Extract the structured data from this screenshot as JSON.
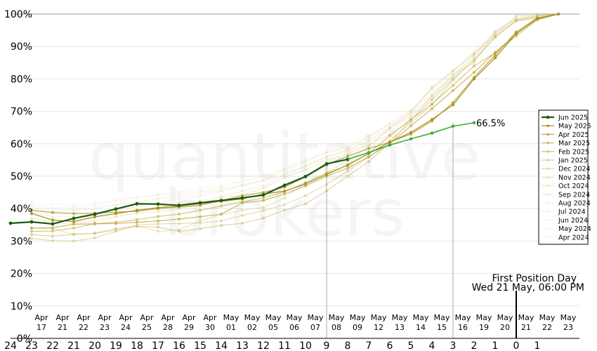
{
  "chart_data": {
    "type": "line",
    "title": "",
    "xlabel": "",
    "ylabel": "",
    "watermark": [
      "quantitative",
      "brokers"
    ],
    "ylim": [
      0,
      100
    ],
    "yticks": [
      "0%",
      "10%",
      "20%",
      "30%",
      "40%",
      "50%",
      "60%",
      "70%",
      "80%",
      "90%",
      "100%"
    ],
    "x_countdown": [
      24,
      23,
      22,
      21,
      20,
      19,
      18,
      17,
      16,
      15,
      14,
      13,
      12,
      11,
      10,
      9,
      8,
      7,
      6,
      5,
      4,
      3,
      2,
      1,
      0,
      1
    ],
    "x_dates": [
      [
        "Apr",
        "17"
      ],
      [
        "Apr",
        "21"
      ],
      [
        "Apr",
        "22"
      ],
      [
        "Apr",
        "23"
      ],
      [
        "Apr",
        "24"
      ],
      [
        "Apr",
        "25"
      ],
      [
        "Apr",
        "28"
      ],
      [
        "Apr",
        "29"
      ],
      [
        "Apr",
        "30"
      ],
      [
        "May",
        "01"
      ],
      [
        "May",
        "02"
      ],
      [
        "May",
        "05"
      ],
      [
        "May",
        "06"
      ],
      [
        "May",
        "07"
      ],
      [
        "May",
        "08"
      ],
      [
        "May",
        "09"
      ],
      [
        "May",
        "12"
      ],
      [
        "May",
        "13"
      ],
      [
        "May",
        "14"
      ],
      [
        "May",
        "15"
      ],
      [
        "May",
        "16"
      ],
      [
        "May",
        "19"
      ],
      [
        "May",
        "20"
      ],
      [
        "May",
        "21"
      ],
      [
        "May",
        "22"
      ],
      [
        "May",
        "23"
      ]
    ],
    "grid": true,
    "legend_position": "right",
    "annotation": {
      "line1": "First Position Day",
      "line2": "Wed 21 May, 06:00 PM",
      "at_countdown": 0
    },
    "current_label": "66.5%",
    "current_vline_countdown": 3,
    "past_vline_countdown": 9,
    "series": [
      {
        "name": "Jun 2025",
        "color": "#1c5a14",
        "width": 2.2,
        "opacity": 1.0,
        "start_index": 0,
        "values": [
          35.5,
          35.9,
          35.3,
          37.0,
          38.3,
          39.9,
          41.5,
          41.4,
          41.0,
          41.8,
          42.5,
          43.3,
          44.2,
          47.2,
          49.9,
          53.8,
          55.2
        ],
        "continuation": [
          55.2,
          57.3,
          59.6,
          61.5,
          63.3,
          65.4,
          66.5
        ]
      },
      {
        "name": "May 2025",
        "color": "#a88f1a",
        "width": 1.3,
        "opacity": 0.95,
        "start_index": 1,
        "values": [
          38.5,
          36.5,
          36.0,
          37.5,
          38.5,
          39.5,
          40.3,
          40.8,
          41.5,
          42.3,
          43.0,
          44.5,
          45.4,
          47.6,
          50.5,
          53.5,
          57.0,
          60.5,
          63.5,
          67.5,
          72.0,
          80.0,
          86.5,
          94.0,
          98.5,
          100
        ]
      },
      {
        "name": "Apr 2025",
        "color": "#b49a28",
        "width": 1.2,
        "opacity": 0.85,
        "start_index": 1,
        "values": [
          39.5,
          38.8,
          38.5,
          38.6,
          38.9,
          39.2,
          40.0,
          40.5,
          41.0,
          42.5,
          44.0,
          45.0,
          46.6,
          49.8,
          53.5,
          56.2,
          58.5,
          60.5,
          63.0,
          67.0,
          72.7,
          80.5,
          87.4,
          94.5,
          98.8,
          100
        ]
      },
      {
        "name": "Mar 2025",
        "color": "#bba336",
        "width": 1.2,
        "opacity": 0.75,
        "start_index": 1,
        "values": [
          34.0,
          34.1,
          35.2,
          35.3,
          35.4,
          35.8,
          36.2,
          36.8,
          37.5,
          38.3,
          41.8,
          42.5,
          44.5,
          47.0,
          50.0,
          52.5,
          56.0,
          60.0,
          65.5,
          70.8,
          76.4,
          82.0,
          88.2,
          93.8,
          98.6,
          100
        ]
      },
      {
        "name": "Feb 2025",
        "color": "#c2ac48",
        "width": 1.2,
        "opacity": 0.7,
        "start_index": 1,
        "values": [
          33.0,
          33.1,
          34.0,
          35.4,
          35.8,
          36.6,
          37.6,
          38.3,
          39.5,
          40.8,
          42.1,
          43.3,
          45.2,
          48.0,
          51.0,
          53.3,
          57.0,
          62.5,
          67.5,
          72.3,
          78.0,
          84.0,
          88.0,
          93.2,
          98.2,
          100
        ]
      },
      {
        "name": "Jan 2025",
        "color": "#c9b45a",
        "width": 1.1,
        "opacity": 0.6,
        "start_index": 1,
        "values": [
          32.0,
          31.5,
          32.1,
          32.4,
          33.8,
          34.5,
          34.3,
          33.0,
          33.8,
          34.8,
          35.5,
          37.1,
          39.5,
          41.5,
          45.5,
          50.0,
          54.5,
          60.2,
          67.4,
          73.6,
          80.1,
          86.1,
          92.8,
          97.9,
          98.8,
          100
        ]
      },
      {
        "name": "Dec 2024",
        "color": "#cfbd6c",
        "width": 1.1,
        "opacity": 0.55,
        "start_index": 1,
        "values": [
          30.8,
          30.1,
          30.0,
          31.0,
          33.0,
          35.0,
          35.3,
          35.4,
          35.6,
          36.2,
          37.9,
          39.4,
          41.2,
          44.0,
          47.5,
          51.6,
          55.8,
          61.0,
          66.5,
          72.0,
          79.6,
          85.5,
          93.0,
          98.0,
          99.5,
          100
        ]
      },
      {
        "name": "Nov 2024",
        "color": "#d5c47e",
        "width": 1.1,
        "opacity": 0.5,
        "start_index": 1,
        "values": [
          34.0,
          33.8,
          32.1,
          32.4,
          33.3,
          34.6,
          33.0,
          33.4,
          36.3,
          38.2,
          39.5,
          40.4,
          43.2,
          48.0,
          51.0,
          54.7,
          59.2,
          64.9,
          69.6,
          77.4,
          82.6,
          87.7,
          93.6,
          99.4,
          99.6,
          100
        ]
      },
      {
        "name": "Oct 2024",
        "color": "#dbcb90",
        "width": 1.0,
        "opacity": 0.45,
        "start_index": 1,
        "values": [
          36.0,
          35.4,
          35.5,
          36.1,
          37.5,
          38.6,
          39.1,
          40.0,
          41.6,
          43.3,
          44.3,
          46.4,
          49.6,
          52.0,
          55.0,
          56.9,
          59.7,
          62.8,
          67.2,
          74.9,
          81.4,
          85.0,
          94.4,
          98.6,
          99.4,
          100
        ]
      },
      {
        "name": "Sep 2024",
        "color": "#e0d2a0",
        "width": 1.0,
        "opacity": 0.42,
        "start_index": 1,
        "values": [
          37.0,
          36.2,
          36.3,
          37.1,
          38.2,
          39.4,
          40.2,
          41.9,
          42.4,
          43.8,
          45.4,
          47.1,
          50.4,
          53.0,
          56.0,
          58.0,
          61.0,
          64.8,
          68.6,
          74.3,
          81.1,
          87.0,
          94.8,
          98.5,
          99.2,
          100
        ]
      },
      {
        "name": "Aug 2024",
        "color": "#e5d8b0",
        "width": 1.0,
        "opacity": 0.4,
        "start_index": 1,
        "values": [
          39.0,
          37.4,
          37.7,
          38.6,
          39.7,
          40.6,
          41.8,
          43.0,
          43.9,
          45.4,
          47.2,
          48.9,
          51.6,
          54.5,
          57.2,
          58.7,
          62.0,
          66.4,
          70.4,
          76.8,
          82.4,
          88.2,
          94.2,
          98.0,
          99.0,
          100
        ]
      },
      {
        "name": "Jul 2024",
        "color": "#e9debe",
        "width": 1.0,
        "opacity": 0.38,
        "start_index": 1,
        "values": [
          40.0,
          39.1,
          39.4,
          40.0,
          41.1,
          42.1,
          43.1,
          44.2,
          45.1,
          46.1,
          47.3,
          48.5,
          50.4,
          53.2,
          55.7,
          57.6,
          60.4,
          63.9,
          68.4,
          74.8,
          80.5,
          87.3,
          93.6,
          98.3,
          98.6,
          100
        ]
      },
      {
        "name": "Jun 2024",
        "color": "#ede3ca",
        "width": 1.0,
        "opacity": 0.36,
        "start_index": 1,
        "values": [
          41.0,
          40.3,
          40.5,
          41.1,
          42.4,
          43.4,
          44.2,
          45.3,
          46.4,
          47.0,
          48.6,
          50.1,
          52.3,
          55.0,
          57.5,
          59.0,
          62.5,
          66.0,
          70.2,
          76.5,
          82.0,
          88.6,
          94.6,
          98.9,
          99.3,
          100
        ]
      },
      {
        "name": "May 2024",
        "color": "#f0e7d4",
        "width": 1.0,
        "opacity": 0.34,
        "start_index": 1,
        "values": [
          42.0,
          41.2,
          41.2,
          41.9,
          42.8,
          43.6,
          44.2,
          44.9,
          45.6,
          46.6,
          48.2,
          49.9,
          52.2,
          54.8,
          57.6,
          59.4,
          62.4,
          65.8,
          69.8,
          75.4,
          81.2,
          87.4,
          93.2,
          97.8,
          98.4,
          100
        ]
      },
      {
        "name": "Apr 2024",
        "color": "#f3ecdd",
        "width": 1.0,
        "opacity": 0.32,
        "start_index": 1,
        "values": [
          40.5,
          39.6,
          39.6,
          40.2,
          41.2,
          42.0,
          42.9,
          43.7,
          44.6,
          45.5,
          47.0,
          48.6,
          50.7,
          53.4,
          56.2,
          58.2,
          61.3,
          64.9,
          69.1,
          75.0,
          80.8,
          87.1,
          93.4,
          98.1,
          98.8,
          100
        ]
      }
    ]
  }
}
